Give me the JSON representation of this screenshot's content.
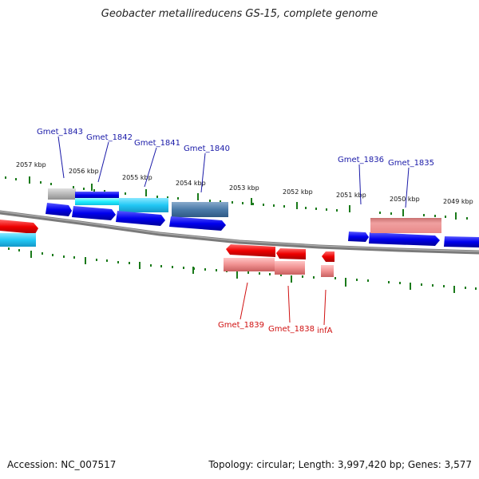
{
  "header": {
    "title": "Geobacter metallireducens GS-15, complete genome"
  },
  "footer": {
    "accession": "Accession: NC_007517",
    "summary": "Topology: circular; Length: 3,997,420 bp; Genes: 3,577"
  },
  "ruler": {
    "ticks": [
      "2057 kbp",
      "2056 kbp",
      "2055 kbp",
      "2054 kbp",
      "2053 kbp",
      "2052 kbp",
      "2051 kbp",
      "2050 kbp",
      "2049 kbp"
    ]
  },
  "genes": {
    "top": [
      "Gmet_1843",
      "Gmet_1842",
      "Gmet_1841",
      "Gmet_1840",
      "Gmet_1836",
      "Gmet_1835"
    ],
    "bottom": [
      "Gmet_1839",
      "Gmet_1838",
      "infA"
    ]
  },
  "colors": {
    "forward": "#0000e8",
    "reverse": "#ee0000",
    "forward_label": "#1a1aa8",
    "reverse_label": "#d01010",
    "tick": "#1a7a1a"
  }
}
